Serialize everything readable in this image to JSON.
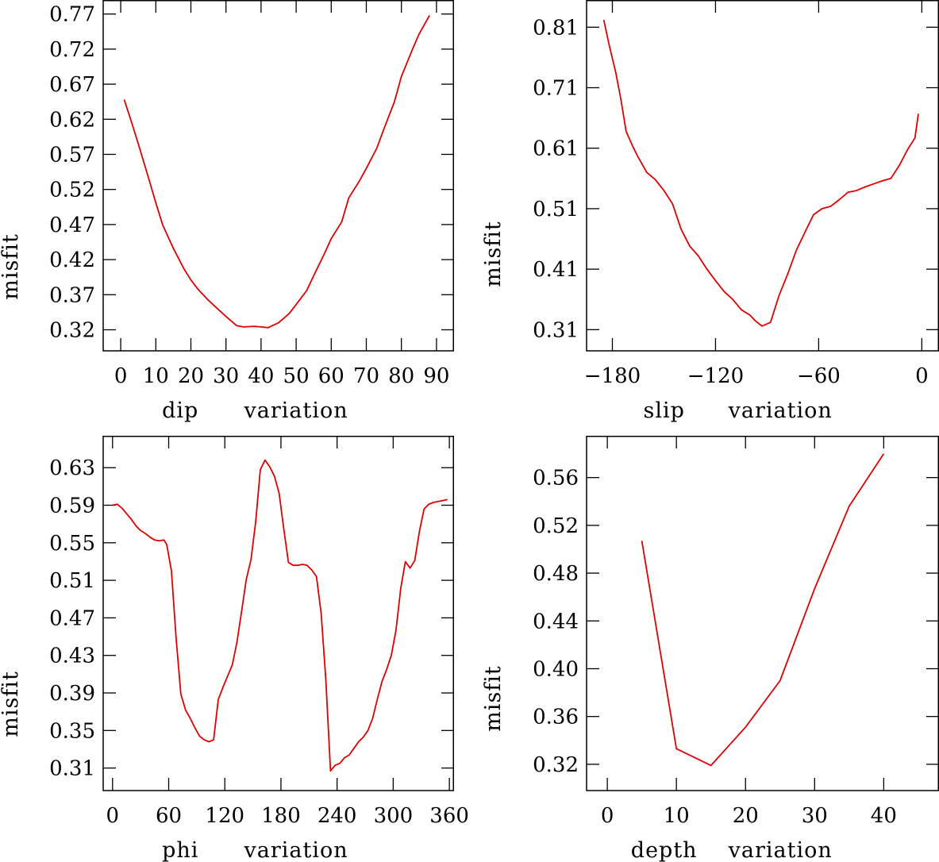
{
  "chart_data": [
    {
      "type": "line",
      "xlabel": "dip",
      "xlabel2": "variation",
      "ylabel": "misfit",
      "xlim": [
        -5,
        95
      ],
      "ylim": [
        0.29,
        0.79
      ],
      "xticks": [
        0,
        10,
        20,
        30,
        40,
        50,
        60,
        70,
        80,
        90
      ],
      "yticks": [
        0.32,
        0.37,
        0.42,
        0.47,
        0.52,
        0.57,
        0.62,
        0.67,
        0.72,
        0.77
      ],
      "ytick_labels": [
        "0.32",
        "0.37",
        "0.42",
        "0.47",
        "0.52",
        "0.57",
        "0.62",
        "0.67",
        "0.72",
        "0.77"
      ],
      "color": "#e00000",
      "x": [
        1,
        3,
        5,
        8,
        10,
        12,
        15,
        18,
        20,
        22,
        25,
        28,
        30,
        33,
        35,
        38,
        40,
        42,
        45,
        48,
        50,
        53,
        55,
        58,
        60,
        63,
        65,
        68,
        70,
        73,
        75,
        78,
        80,
        83,
        85,
        88
      ],
      "y": [
        0.648,
        0.617,
        0.585,
        0.535,
        0.501,
        0.469,
        0.436,
        0.407,
        0.391,
        0.378,
        0.362,
        0.348,
        0.339,
        0.326,
        0.324,
        0.325,
        0.324,
        0.323,
        0.33,
        0.343,
        0.356,
        0.376,
        0.397,
        0.428,
        0.45,
        0.474,
        0.508,
        0.532,
        0.55,
        0.579,
        0.606,
        0.645,
        0.681,
        0.718,
        0.741,
        0.768
      ]
    },
    {
      "type": "line",
      "xlabel": "slip",
      "xlabel2": "variation",
      "ylabel": "misfit",
      "xlim": [
        -195,
        10
      ],
      "ylim": [
        0.275,
        0.855
      ],
      "xticks": [
        -180,
        -120,
        -60,
        0
      ],
      "xtick_labels": [
        "−180",
        "−120",
        "−60",
        "0"
      ],
      "yticks": [
        0.31,
        0.41,
        0.51,
        0.61,
        0.71,
        0.81
      ],
      "ytick_labels": [
        "0.31",
        "0.41",
        "0.51",
        "0.61",
        "0.71",
        "0.81"
      ],
      "color": "#e00000",
      "x": [
        -185,
        -182,
        -178,
        -175,
        -172,
        -168,
        -165,
        -160,
        -155,
        -150,
        -145,
        -140,
        -135,
        -130,
        -125,
        -120,
        -115,
        -110,
        -105,
        -100,
        -97,
        -93,
        -88,
        -83,
        -78,
        -73,
        -68,
        -63,
        -58,
        -53,
        -48,
        -43,
        -38,
        -33,
        -28,
        -23,
        -18,
        -13,
        -8,
        -4,
        -2
      ],
      "y": [
        0.822,
        0.782,
        0.735,
        0.69,
        0.638,
        0.612,
        0.595,
        0.57,
        0.558,
        0.54,
        0.518,
        0.476,
        0.448,
        0.432,
        0.41,
        0.391,
        0.373,
        0.36,
        0.343,
        0.334,
        0.325,
        0.316,
        0.322,
        0.367,
        0.402,
        0.441,
        0.471,
        0.5,
        0.51,
        0.514,
        0.525,
        0.537,
        0.54,
        0.546,
        0.551,
        0.556,
        0.56,
        0.582,
        0.609,
        0.627,
        0.667
      ]
    },
    {
      "type": "line",
      "xlabel": "phi",
      "xlabel2": "variation",
      "ylabel": "misfit",
      "xlim": [
        -10,
        365
      ],
      "ylim": [
        0.286,
        0.664
      ],
      "xticks": [
        0,
        60,
        120,
        180,
        240,
        300,
        360
      ],
      "yticks": [
        0.31,
        0.35,
        0.39,
        0.43,
        0.47,
        0.51,
        0.55,
        0.59,
        0.63
      ],
      "ytick_labels": [
        "0.31",
        "0.35",
        "0.39",
        "0.43",
        "0.47",
        "0.51",
        "0.55",
        "0.59",
        "0.63"
      ],
      "color": "#e00000",
      "x": [
        0,
        5,
        10,
        15,
        20,
        25,
        30,
        35,
        40,
        45,
        50,
        55,
        58,
        63,
        68,
        73,
        78,
        83,
        88,
        93,
        98,
        103,
        108,
        113,
        118,
        123,
        128,
        133,
        138,
        143,
        148,
        153,
        158,
        163,
        168,
        173,
        178,
        183,
        188,
        193,
        198,
        203,
        208,
        213,
        218,
        223,
        228,
        233,
        238,
        243,
        248,
        253,
        258,
        263,
        268,
        273,
        278,
        283,
        288,
        293,
        298,
        303,
        308,
        313,
        318,
        323,
        328,
        333,
        338,
        343,
        348,
        353,
        358
      ],
      "y": [
        0.59,
        0.591,
        0.587,
        0.581,
        0.575,
        0.568,
        0.563,
        0.56,
        0.556,
        0.553,
        0.552,
        0.553,
        0.548,
        0.52,
        0.448,
        0.389,
        0.372,
        0.363,
        0.353,
        0.344,
        0.34,
        0.338,
        0.34,
        0.383,
        0.396,
        0.408,
        0.42,
        0.444,
        0.477,
        0.511,
        0.532,
        0.572,
        0.628,
        0.638,
        0.631,
        0.621,
        0.603,
        0.565,
        0.529,
        0.526,
        0.526,
        0.527,
        0.526,
        0.521,
        0.514,
        0.475,
        0.404,
        0.307,
        0.313,
        0.315,
        0.321,
        0.324,
        0.331,
        0.338,
        0.343,
        0.35,
        0.363,
        0.383,
        0.402,
        0.415,
        0.43,
        0.457,
        0.501,
        0.53,
        0.523,
        0.531,
        0.562,
        0.586,
        0.591,
        0.593,
        0.594,
        0.595,
        0.596
      ]
    },
    {
      "type": "line",
      "xlabel": "depth",
      "xlabel2": "variation",
      "ylabel": "misfit",
      "xlim": [
        -3,
        48
      ],
      "ylim": [
        0.298,
        0.595
      ],
      "xticks": [
        0,
        10,
        20,
        30,
        40
      ],
      "yticks": [
        0.32,
        0.36,
        0.4,
        0.44,
        0.48,
        0.52,
        0.56
      ],
      "ytick_labels": [
        "0.32",
        "0.36",
        "0.40",
        "0.44",
        "0.48",
        "0.52",
        "0.56"
      ],
      "color": "#e00000",
      "x": [
        5,
        10,
        15,
        20,
        25,
        30,
        35,
        40
      ],
      "y": [
        0.507,
        0.333,
        0.319,
        0.351,
        0.39,
        0.467,
        0.536,
        0.58
      ]
    }
  ]
}
